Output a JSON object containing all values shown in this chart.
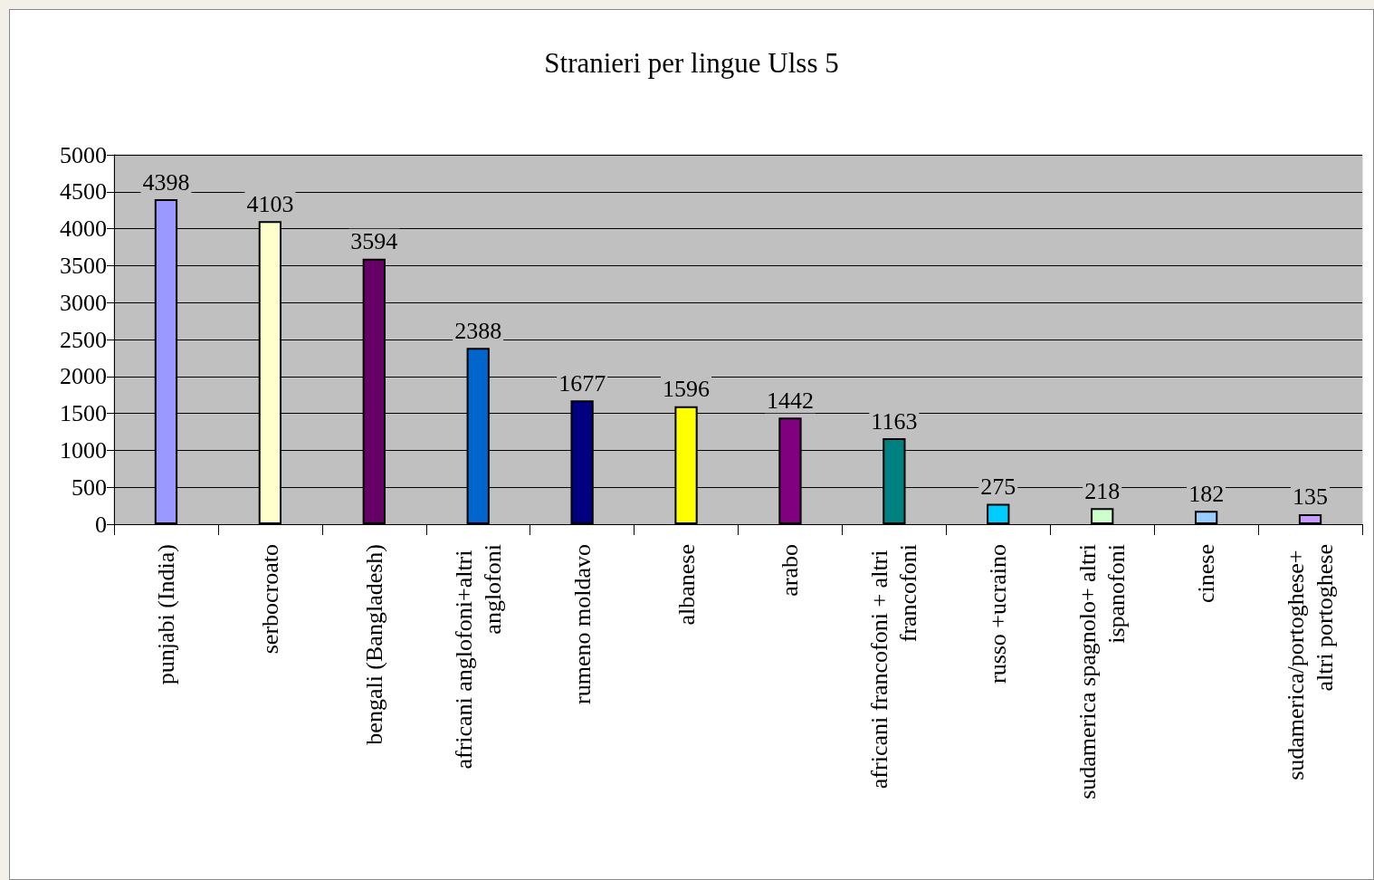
{
  "chart_data": {
    "type": "bar",
    "title": "Stranieri per lingue Ulss 5",
    "categories": [
      "punjabi (India)",
      "serbocroato",
      "bengali (Bangladesh)",
      "africani anglofoni+altri anglofoni",
      "rumeno moldavo",
      "albanese",
      "arabo",
      "africani francofoni + altri francofoni",
      "russo +ucraino",
      "sudamerica spagnolo+ altri ispanofoni",
      "cinese",
      "sudamerica/portoghese+ altri portoghese"
    ],
    "values": [
      4398,
      4103,
      3594,
      2388,
      1677,
      1596,
      1442,
      1163,
      275,
      218,
      182,
      135
    ],
    "colors": [
      "#9999ff",
      "#ffffcc",
      "#660066",
      "#0066cc",
      "#000080",
      "#ffff00",
      "#800080",
      "#008080",
      "#00ccff",
      "#ccffcc",
      "#99ccff",
      "#cc99ff"
    ],
    "ylim": [
      0,
      5000
    ],
    "yticks": [
      0,
      500,
      1000,
      1500,
      2000,
      2500,
      3000,
      3500,
      4000,
      4500,
      5000
    ],
    "grid": "y",
    "data_labels": true
  }
}
